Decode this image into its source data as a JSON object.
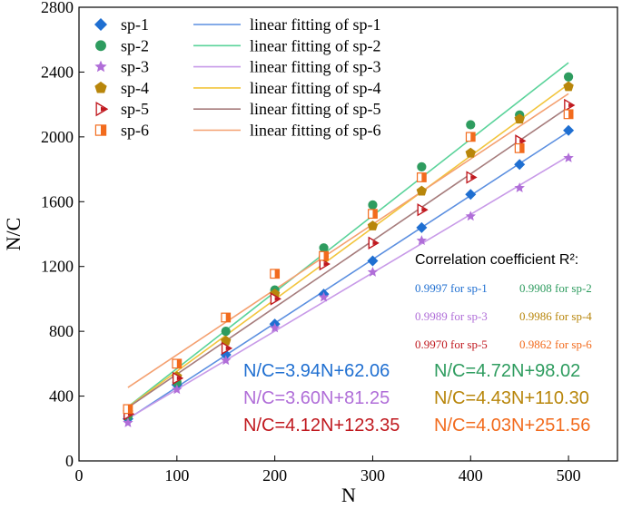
{
  "chart_data": {
    "type": "scatter",
    "xlabel": "N",
    "ylabel": "N/C",
    "xlim": [
      0,
      550
    ],
    "ylim": [
      0,
      2800
    ],
    "xticks": [
      0,
      100,
      200,
      300,
      400,
      500
    ],
    "yticks": [
      0,
      400,
      800,
      1200,
      1600,
      2000,
      2400,
      2800
    ],
    "x": [
      50,
      100,
      150,
      200,
      250,
      300,
      350,
      400,
      450,
      500
    ],
    "legend_placement": "top-left",
    "series": [
      {
        "name": "sp-1",
        "marker": "diamond",
        "color": "#1f6fd1",
        "values": [
          260,
          470,
          655,
          845,
          1030,
          1235,
          1440,
          1645,
          1830,
          2040
        ],
        "fit_label": "linear fitting of sp-1",
        "fit_color": "#5b8fe0",
        "slope": 3.94,
        "intercept": 62.06,
        "equation": "N/C=3.94N+62.06",
        "r2": "0.9997 for sp-1"
      },
      {
        "name": "sp-2",
        "marker": "circle",
        "color": "#2e9c5f",
        "values": [
          275,
          485,
          800,
          1055,
          1315,
          1580,
          1815,
          2075,
          2135,
          2370
        ],
        "fit_label": "linear fitting of sp-2",
        "fit_color": "#5ad39a",
        "slope": 4.72,
        "intercept": 98.02,
        "equation": "N/C=4.72N+98.02",
        "r2": "0.9908 for sp-2"
      },
      {
        "name": "sp-3",
        "marker": "star",
        "color": "#b06ed8",
        "values": [
          235,
          440,
          620,
          820,
          1010,
          1165,
          1360,
          1510,
          1685,
          1870
        ],
        "fit_label": "linear fitting of sp-3",
        "fit_color": "#c89ae8",
        "slope": 3.6,
        "intercept": 81.25,
        "equation": "N/C=3.60N+81.25",
        "r2": "0.9989 for sp-3"
      },
      {
        "name": "sp-4",
        "marker": "pentagon",
        "color": "#b8860b",
        "values": [
          300,
          520,
          740,
          1030,
          1255,
          1450,
          1665,
          1900,
          2110,
          2310
        ],
        "fit_label": "linear fitting of sp-4",
        "fit_color": "#f2c53d",
        "slope": 4.43,
        "intercept": 110.3,
        "equation": "N/C=4.43N+110.30",
        "r2": "0.9986 for sp-4"
      },
      {
        "name": "sp-5",
        "marker": "triangle-right",
        "color": "#c0191f",
        "values": [
          290,
          510,
          695,
          1000,
          1215,
          1345,
          1550,
          1750,
          1975,
          2195
        ],
        "fit_label": "linear fitting of sp-5",
        "fit_color": "#a67c7c",
        "slope": 4.12,
        "intercept": 123.35,
        "equation": "N/C=4.12N+123.35",
        "r2": "0.9970 for sp-5"
      },
      {
        "name": "sp-6",
        "marker": "square-half",
        "color": "#f26b1d",
        "values": [
          320,
          600,
          885,
          1155,
          1265,
          1525,
          1750,
          2000,
          1930,
          2140
        ],
        "fit_label": "linear fitting of sp-6",
        "fit_color": "#f4a070",
        "slope": 4.03,
        "intercept": 251.56,
        "equation": "N/C=4.03N+251.56",
        "r2": "0.9862 for sp-6"
      }
    ],
    "r2_title": "Correlation coefficient R²:"
  }
}
